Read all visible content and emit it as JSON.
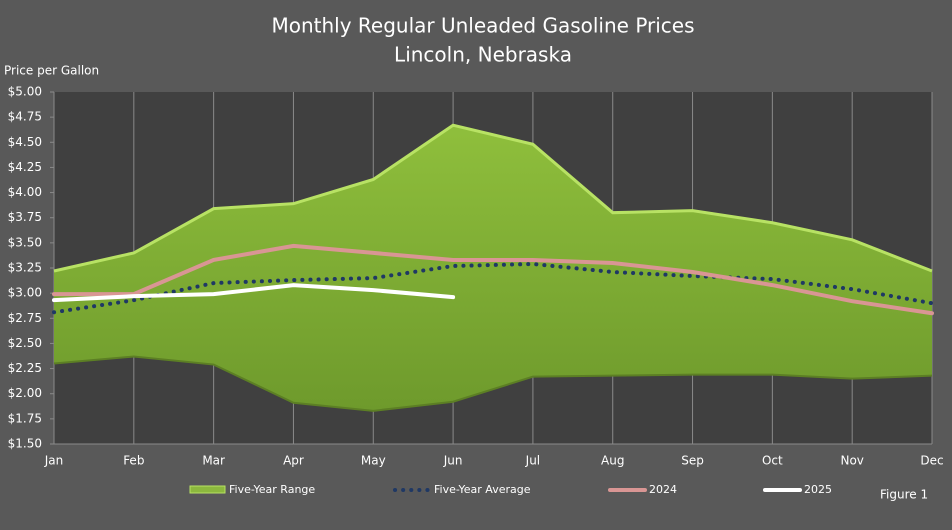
{
  "chart_data": {
    "type": "line",
    "title": "Monthly Regular Unleaded Gasoline Prices",
    "subtitle": "Lincoln, Nebraska",
    "y_label": "Price per Gallon",
    "annotation": "Figure 1",
    "categories": [
      "Jan",
      "Feb",
      "Mar",
      "Apr",
      "May",
      "Jun",
      "Jul",
      "Aug",
      "Sep",
      "Oct",
      "Nov",
      "Dec"
    ],
    "ylim": [
      1.5,
      5.0
    ],
    "yticks": [
      {
        "value": 1.5,
        "label": "$1.50"
      },
      {
        "value": 1.75,
        "label": "$1.75"
      },
      {
        "value": 2.0,
        "label": "$2.00"
      },
      {
        "value": 2.25,
        "label": "$2.25"
      },
      {
        "value": 2.5,
        "label": "$2.50"
      },
      {
        "value": 2.75,
        "label": "$2.75"
      },
      {
        "value": 3.0,
        "label": "$3.00"
      },
      {
        "value": 3.25,
        "label": "$3.25"
      },
      {
        "value": 3.5,
        "label": "$3.50"
      },
      {
        "value": 3.75,
        "label": "$3.75"
      },
      {
        "value": 4.0,
        "label": "$4.00"
      },
      {
        "value": 4.25,
        "label": "$4.25"
      },
      {
        "value": 4.5,
        "label": "$4.50"
      },
      {
        "value": 4.75,
        "label": "$4.75"
      },
      {
        "value": 5.0,
        "label": "$5.00"
      }
    ],
    "series": [
      {
        "name": "Five-Year Range",
        "color": "#8cb83e",
        "edge": "#b8e264",
        "high": [
          3.22,
          3.4,
          3.84,
          3.89,
          4.13,
          4.67,
          4.48,
          3.8,
          3.82,
          3.7,
          3.53,
          3.22
        ],
        "low": [
          2.3,
          2.37,
          2.29,
          1.91,
          1.83,
          1.92,
          2.17,
          2.18,
          2.19,
          2.19,
          2.15,
          2.18
        ]
      },
      {
        "name": "Five-Year Average",
        "color": "#1f3864",
        "style": "dotted",
        "values": [
          2.81,
          2.93,
          3.1,
          3.13,
          3.15,
          3.27,
          3.29,
          3.21,
          3.17,
          3.14,
          3.04,
          2.9
        ]
      },
      {
        "name": "2024",
        "color": "#d99694",
        "values": [
          2.99,
          2.99,
          3.33,
          3.47,
          3.4,
          3.33,
          3.33,
          3.3,
          3.21,
          3.08,
          2.92,
          2.8
        ]
      },
      {
        "name": "2025",
        "color": "#ffffff",
        "values": [
          2.93,
          2.97,
          2.99,
          3.08,
          3.03,
          2.96,
          null,
          null,
          null,
          null,
          null,
          null
        ]
      }
    ]
  }
}
